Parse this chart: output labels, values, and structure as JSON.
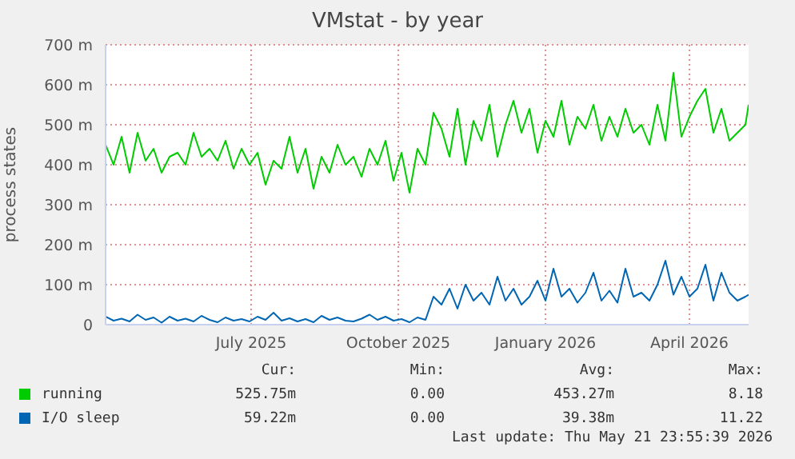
{
  "chart_data": {
    "type": "line",
    "title": "VMstat - by year",
    "ylabel": "process states",
    "x": [
      "2025-04-01",
      "2025-04-06",
      "2025-04-11",
      "2025-04-16",
      "2025-04-21",
      "2025-04-26",
      "2025-05-01",
      "2025-05-06",
      "2025-05-11",
      "2025-05-16",
      "2025-05-21",
      "2025-05-26",
      "2025-05-31",
      "2025-06-05",
      "2025-06-10",
      "2025-06-15",
      "2025-06-20",
      "2025-06-25",
      "2025-06-30",
      "2025-07-05",
      "2025-07-10",
      "2025-07-15",
      "2025-07-20",
      "2025-07-25",
      "2025-07-30",
      "2025-08-04",
      "2025-08-09",
      "2025-08-14",
      "2025-08-19",
      "2025-08-24",
      "2025-08-29",
      "2025-09-03",
      "2025-09-08",
      "2025-09-13",
      "2025-09-18",
      "2025-09-23",
      "2025-09-28",
      "2025-10-03",
      "2025-10-08",
      "2025-10-13",
      "2025-10-18",
      "2025-10-23",
      "2025-10-28",
      "2025-11-02",
      "2025-11-07",
      "2025-11-12",
      "2025-11-17",
      "2025-11-22",
      "2025-11-27",
      "2025-12-02",
      "2025-12-07",
      "2025-12-12",
      "2025-12-17",
      "2025-12-22",
      "2025-12-27",
      "2026-01-01",
      "2026-01-06",
      "2026-01-11",
      "2026-01-16",
      "2026-01-21",
      "2026-01-26",
      "2026-01-31",
      "2026-02-05",
      "2026-02-10",
      "2026-02-15",
      "2026-02-20",
      "2026-02-25",
      "2026-03-02",
      "2026-03-07",
      "2026-03-12",
      "2026-03-17",
      "2026-03-22",
      "2026-03-27",
      "2026-04-01",
      "2026-04-06",
      "2026-04-11",
      "2026-04-16",
      "2026-04-21",
      "2026-04-26",
      "2026-05-01",
      "2026-05-06",
      "2026-05-08"
    ],
    "series": [
      {
        "name": "running",
        "color": "#00cc00",
        "values": [
          450,
          400,
          470,
          380,
          480,
          410,
          440,
          380,
          420,
          430,
          400,
          480,
          420,
          440,
          410,
          460,
          390,
          440,
          400,
          430,
          350,
          410,
          390,
          470,
          380,
          440,
          340,
          420,
          380,
          450,
          400,
          420,
          370,
          440,
          400,
          460,
          360,
          430,
          330,
          440,
          400,
          530,
          490,
          420,
          540,
          400,
          510,
          460,
          550,
          420,
          500,
          560,
          480,
          540,
          430,
          510,
          470,
          560,
          450,
          520,
          490,
          550,
          460,
          520,
          470,
          540,
          480,
          500,
          450,
          550,
          460,
          630,
          470,
          520,
          560,
          590,
          480,
          540,
          460,
          480,
          500,
          550
        ]
      },
      {
        "name": "I/O sleep",
        "color": "#0066b3",
        "values": [
          20,
          10,
          15,
          8,
          25,
          12,
          18,
          5,
          20,
          10,
          15,
          8,
          22,
          12,
          6,
          18,
          10,
          14,
          8,
          20,
          12,
          30,
          10,
          16,
          8,
          14,
          6,
          22,
          12,
          18,
          10,
          8,
          15,
          25,
          12,
          20,
          10,
          14,
          6,
          18,
          12,
          70,
          50,
          90,
          40,
          100,
          60,
          80,
          50,
          120,
          60,
          90,
          50,
          70,
          110,
          60,
          140,
          70,
          90,
          55,
          80,
          130,
          60,
          85,
          55,
          140,
          70,
          80,
          60,
          100,
          160,
          75,
          120,
          70,
          90,
          150,
          60,
          130,
          80,
          60,
          70,
          75
        ]
      }
    ],
    "xlim": [
      "2025-04-01",
      "2026-05-08"
    ],
    "xticks": [
      {
        "value": "2025-07-01",
        "label": "July 2025"
      },
      {
        "value": "2025-10-01",
        "label": "October 2025"
      },
      {
        "value": "2026-01-01",
        "label": "January 2026"
      },
      {
        "value": "2026-04-01",
        "label": "April 2026"
      }
    ],
    "ylim": [
      0,
      700
    ],
    "yticks": [
      0,
      {
        "value": 100,
        "label": "100 m"
      },
      {
        "value": 200,
        "label": "200 m"
      },
      {
        "value": 300,
        "label": "300 m"
      },
      {
        "value": 400,
        "label": "400 m"
      },
      {
        "value": 500,
        "label": "500 m"
      },
      {
        "value": 600,
        "label": "600 m"
      },
      {
        "value": 700,
        "label": "700 m"
      }
    ],
    "grid": true,
    "legend": "bottom",
    "annotations": [
      "Cur:",
      "Min:",
      "Avg:",
      "Max:",
      "525.75m",
      "0.00",
      "453.27m",
      "8.18",
      "59.22m",
      "0.00",
      "39.38m",
      "11.22",
      "Last update: Thu May 21 23:55:39 2026"
    ]
  }
}
